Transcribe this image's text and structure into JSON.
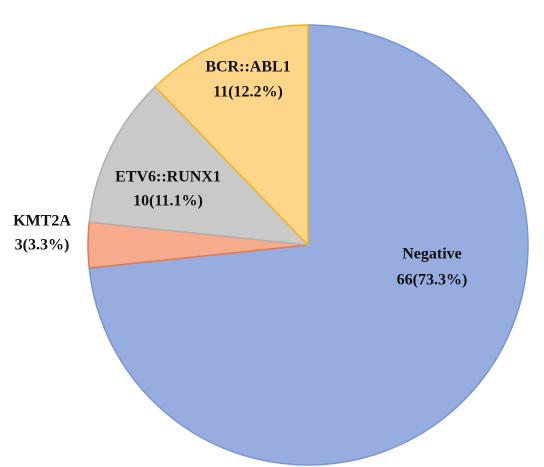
{
  "chart_data": {
    "type": "pie",
    "categories": [
      "Negative",
      "KMT2A",
      "ETV6::RUNX1",
      "BCR::ABL1"
    ],
    "values": [
      66,
      3,
      10,
      11
    ],
    "value_labels": [
      "66(73.3%)",
      "3(3.3%)",
      "10(11.1%)",
      "11(12.2%)"
    ],
    "colors": [
      "#97ade0",
      "#f5ab8c",
      "#c9c9c9",
      "#ffd58a"
    ]
  }
}
